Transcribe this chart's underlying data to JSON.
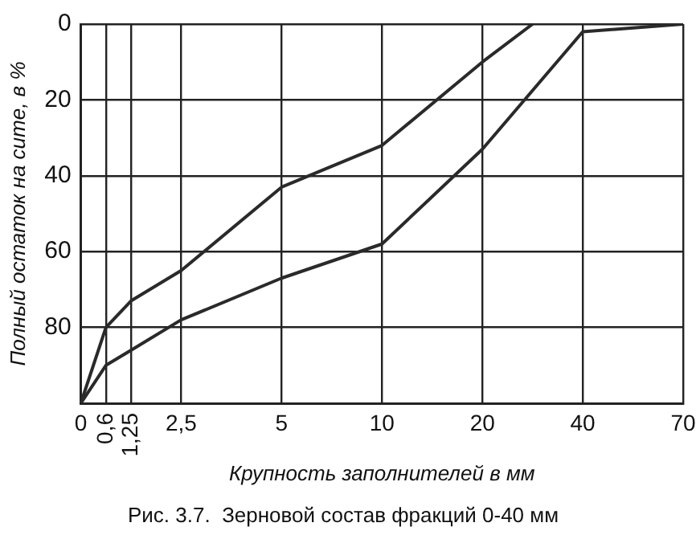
{
  "chart_data": {
    "type": "line",
    "title": "Рис. 3.7.  Зерновой состав фракций 0-40 мм",
    "xlabel": "Крупность заполнителей в мм",
    "ylabel": "Полный остаток на сите, в %",
    "categories": [
      "0",
      "0,6",
      "1,25",
      null,
      "2,5",
      null,
      null,
      null,
      "5",
      null,
      null,
      null,
      "10",
      null,
      null,
      null,
      "20",
      null,
      null,
      null,
      "40",
      null,
      null,
      null,
      "70"
    ],
    "series": [
      {
        "color": "#2a2a2a",
        "values": [
          100,
          80,
          73,
          null,
          65,
          null,
          null,
          null,
          43,
          null,
          null,
          null,
          32,
          null,
          null,
          null,
          10,
          null,
          0,
          null,
          null,
          null,
          null,
          null,
          null
        ]
      },
      {
        "color": "#2a2a2a",
        "values": [
          100,
          90,
          86,
          null,
          78,
          null,
          null,
          null,
          67,
          null,
          null,
          null,
          58,
          null,
          null,
          null,
          33,
          null,
          null,
          null,
          2,
          null,
          null,
          null,
          0
        ]
      }
    ],
    "ylim": [
      100,
      0
    ],
    "yticks": [
      0,
      20,
      40,
      60,
      80,
      {
        "value": 100,
        "label": null
      }
    ],
    "grid": true,
    "legend": false,
    "marker": "none",
    "line_style": "solid"
  }
}
